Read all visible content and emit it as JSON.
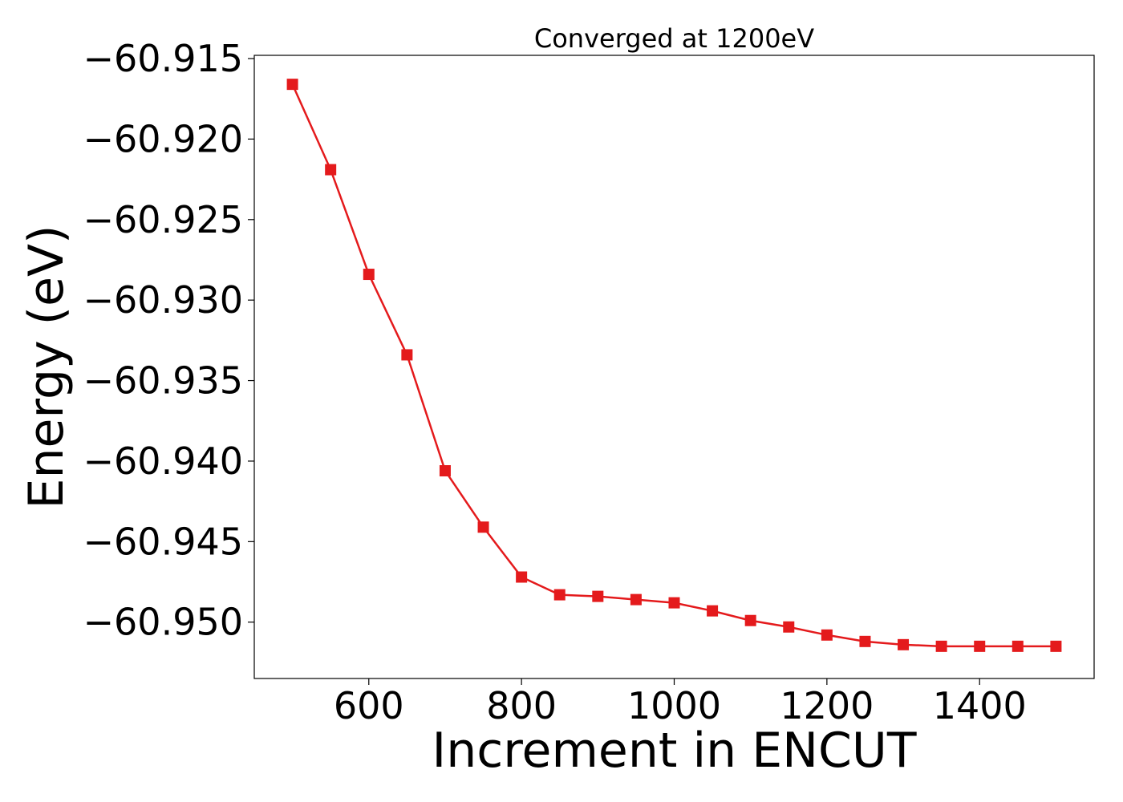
{
  "chart_data": {
    "type": "line",
    "title": "Converged at 1200eV",
    "xlabel": "Increment in ENCUT",
    "ylabel": "Energy (eV)",
    "xlim": [
      450,
      1550
    ],
    "ylim": [
      -60.9535,
      -60.9148
    ],
    "xticks": [
      {
        "value": 600,
        "label": "600"
      },
      {
        "value": 800,
        "label": "800"
      },
      {
        "value": 1000,
        "label": "1000"
      },
      {
        "value": 1200,
        "label": "1200"
      },
      {
        "value": 1400,
        "label": "1400"
      }
    ],
    "yticks": [
      {
        "value": -60.915,
        "label": "−60.915"
      },
      {
        "value": -60.92,
        "label": "−60.920"
      },
      {
        "value": -60.925,
        "label": "−60.925"
      },
      {
        "value": -60.93,
        "label": "−60.930"
      },
      {
        "value": -60.935,
        "label": "−60.935"
      },
      {
        "value": -60.94,
        "label": "−60.940"
      },
      {
        "value": -60.945,
        "label": "−60.945"
      },
      {
        "value": -60.95,
        "label": "−60.950"
      }
    ],
    "grid": false,
    "series": [
      {
        "color": "#e41a1c",
        "marker": "square",
        "x": [
          500,
          550,
          600,
          650,
          700,
          750,
          800,
          850,
          900,
          950,
          1000,
          1050,
          1100,
          1150,
          1200,
          1250,
          1300,
          1350,
          1400,
          1450,
          1500
        ],
        "y": [
          -60.9166,
          -60.9219,
          -60.9284,
          -60.9334,
          -60.9406,
          -60.9441,
          -60.9472,
          -60.9483,
          -60.9484,
          -60.9486,
          -60.9488,
          -60.9493,
          -60.9499,
          -60.9503,
          -60.9508,
          -60.9512,
          -60.9514,
          -60.9515,
          -60.9515,
          -60.9515,
          -60.9515
        ]
      }
    ]
  }
}
